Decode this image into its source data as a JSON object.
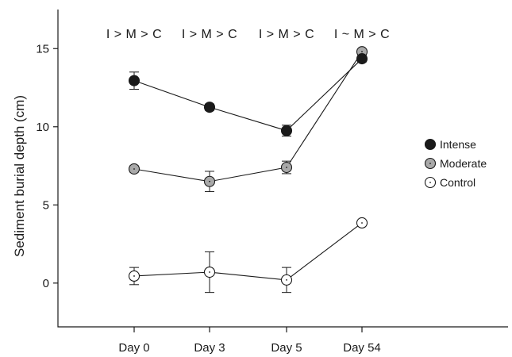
{
  "chart_data": {
    "type": "line",
    "categories": [
      "Day 0",
      "Day 3",
      "Day 5",
      "Day 54"
    ],
    "ylabel": "Sediment burial depth (cm)",
    "xlabel": "",
    "ylim": [
      -2.8,
      17.5
    ],
    "yticks": [
      "0",
      "5",
      "10",
      "15"
    ],
    "grid": false,
    "legend_position": "right",
    "annotations": [
      "I > M > C",
      "I > M > C",
      "I > M > C",
      "I ~ M > C"
    ],
    "series": [
      {
        "name": "Intense",
        "color": "#1a1a1a",
        "marker": "filled-black-circle",
        "values": [
          12.95,
          11.25,
          9.75,
          14.35
        ],
        "errors": [
          0.55,
          0.2,
          0.35,
          0.2
        ]
      },
      {
        "name": "Moderate",
        "color": "#a9a9a9",
        "marker": "gray-circle-with-dot",
        "values": [
          7.3,
          6.5,
          7.4,
          14.8
        ],
        "errors": [
          0.2,
          0.65,
          0.4,
          0.15
        ]
      },
      {
        "name": "Control",
        "color": "#ffffff",
        "marker": "open-circle-with-dot",
        "values": [
          0.45,
          0.7,
          0.2,
          3.85
        ],
        "errors": [
          0.55,
          1.3,
          0.8,
          0.1
        ]
      }
    ]
  }
}
